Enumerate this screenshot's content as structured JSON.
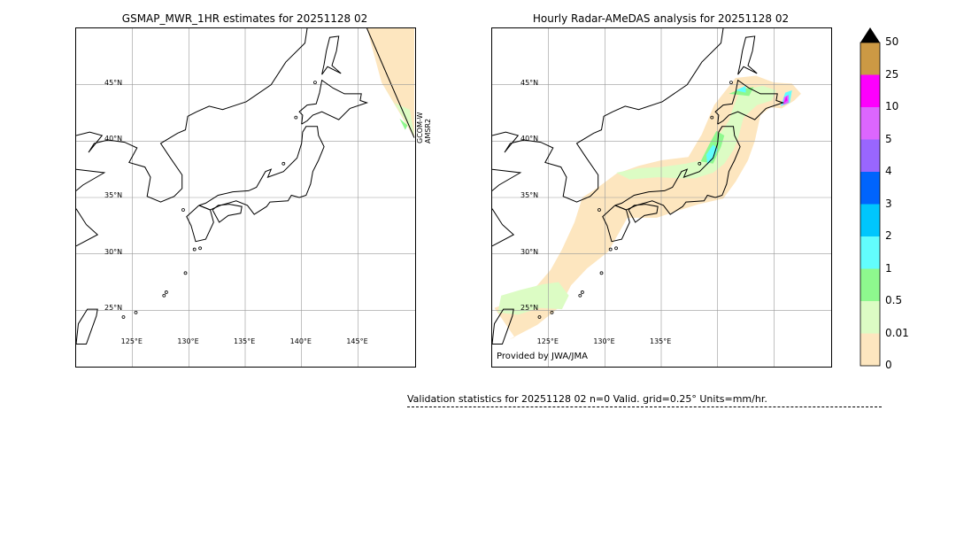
{
  "left_map": {
    "title": "GSMAP_MWR_1HR estimates for 20251128 02",
    "satellite_label": [
      "GCOM-W",
      "AMSR2"
    ]
  },
  "right_map": {
    "title": "Hourly Radar-AMeDAS analysis for 20251128 02",
    "credit": "Provided by JWA/JMA"
  },
  "lat_labels": [
    "25°N",
    "30°N",
    "35°N",
    "40°N",
    "45°N"
  ],
  "lon_labels_left": [
    "125°E",
    "130°E",
    "135°E",
    "140°E",
    "145°E"
  ],
  "lon_labels_right": [
    "125°E",
    "130°E",
    "135°E"
  ],
  "validation": "Validation statistics for 20251128 02  n=0 Valid. grid=0.25° Units=mm/hr.",
  "chart_data": {
    "type": "heatmap",
    "extent": {
      "lon": [
        120,
        150
      ],
      "lat": [
        20,
        50
      ]
    },
    "colorbar": {
      "levels": [
        "0",
        "0.01",
        "0.5",
        "1",
        "2",
        "3",
        "4",
        "5",
        "10",
        "25",
        "50"
      ],
      "colors": [
        "#fde6bf",
        "#dcfcc4",
        "#8ef88e",
        "#62fdfd",
        "#00c6fd",
        "#0064fd",
        "#9966fe",
        "#dc66fe",
        "#fd00fd",
        "#cc9944"
      ],
      "extend": "max"
    }
  }
}
